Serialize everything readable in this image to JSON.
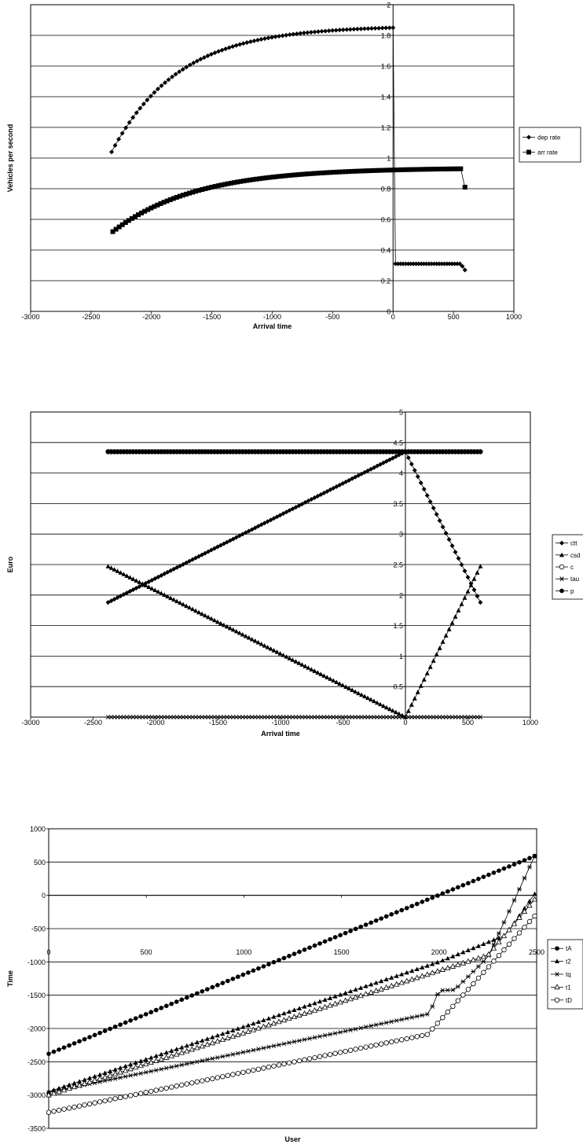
{
  "chart_data": [
    {
      "type": "scatter",
      "title": "",
      "xlabel": "Arrival time",
      "ylabel": "Vehicles per second",
      "xlim": [
        -3000,
        1000
      ],
      "ylim": [
        0,
        2
      ],
      "xticks": [
        -3000,
        -2500,
        -2000,
        -1500,
        -1000,
        -500,
        0,
        500,
        1000
      ],
      "yticks": [
        0,
        0.2,
        0.4,
        0.6,
        0.8,
        1,
        1.2,
        1.4,
        1.6,
        1.8,
        2
      ],
      "grid": "horizontal",
      "legend": "right",
      "series": [
        {
          "name": "dep rate",
          "marker": "diamond",
          "curve": "rise",
          "x_start": -2330,
          "x_end": 0,
          "n": 80,
          "y_start": 1.04,
          "y_end": 1.85,
          "tail": [
            [
              0,
              1.85
            ],
            [
              20,
              0.31
            ],
            [
              560,
              0.31
            ],
            [
              595,
              0.27
            ]
          ],
          "tail_n": 28
        },
        {
          "name": "arr rate",
          "marker": "square",
          "curve": "rise",
          "x_start": -2320,
          "x_end": 560,
          "n": 110,
          "y_start": 0.52,
          "y_end": 0.93,
          "tail": [
            [
              560,
              0.93
            ],
            [
              595,
              0.81
            ]
          ],
          "tail_n": 1
        }
      ]
    },
    {
      "type": "scatter",
      "title": "",
      "xlabel": "Arrival time",
      "ylabel": "Euro",
      "xlim": [
        -3000,
        1000
      ],
      "ylim": [
        0,
        5
      ],
      "xticks": [
        -3000,
        -2500,
        -2000,
        -1500,
        -1000,
        -500,
        0,
        500,
        1000
      ],
      "yticks": [
        0.5,
        1,
        1.5,
        2,
        2.5,
        3,
        3.5,
        4,
        4.5,
        5
      ],
      "grid": "horizontal",
      "legend": "right",
      "series": [
        {
          "name": "ctt",
          "marker": "diamond",
          "points": [
            [
              -2380,
              1.88
            ],
            [
              0,
              4.35
            ],
            [
              600,
              1.88
            ]
          ],
          "n": 120
        },
        {
          "name": "csd",
          "marker": "triangle",
          "points": [
            [
              -2380,
              2.47
            ],
            [
              0,
              0
            ],
            [
              600,
              2.47
            ]
          ],
          "n": 120
        },
        {
          "name": "c",
          "marker": "circle-open",
          "points": [
            [
              -2380,
              4.35
            ],
            [
              600,
              4.35
            ]
          ],
          "n": 120
        },
        {
          "name": "tau",
          "marker": "star",
          "points": [
            [
              -2380,
              0
            ],
            [
              600,
              0
            ]
          ],
          "n": 120
        },
        {
          "name": "p",
          "marker": "circle",
          "points": [
            [
              -2380,
              4.35
            ],
            [
              600,
              4.35
            ]
          ],
          "n": 120
        }
      ]
    },
    {
      "type": "scatter",
      "title": "",
      "xlabel": "User",
      "ylabel": "Time",
      "xlim": [
        0,
        2500
      ],
      "ylim": [
        -3500,
        1000
      ],
      "xticks": [
        0,
        500,
        1000,
        1500,
        2000,
        2500
      ],
      "xtick_labels": [
        "0",
        "500",
        "1000",
        "1500",
        "2000",
        "2500"
      ],
      "yticks": [
        -3500,
        -3000,
        -2500,
        -2000,
        -1500,
        -1000,
        -500,
        0,
        500,
        1000
      ],
      "grid": "horizontal",
      "legend": "right",
      "series": [
        {
          "name": "tA",
          "marker": "circle",
          "points": [
            [
              0,
              -2380
            ],
            [
              2490,
              590
            ]
          ],
          "n": 96
        },
        {
          "name": "t2",
          "marker": "triangle",
          "points": [
            [
              0,
              -2950
            ],
            [
              2000,
              -1000
            ],
            [
              2340,
              -600
            ],
            [
              2490,
              20
            ]
          ],
          "n": 96
        },
        {
          "name": "tq",
          "marker": "star",
          "points": [
            [
              0,
              -2960
            ],
            [
              1950,
              -1780
            ],
            [
              2000,
              -1430
            ],
            [
              2080,
              -1420
            ],
            [
              2250,
              -930
            ],
            [
              2490,
              590
            ]
          ],
          "n": 96
        },
        {
          "name": "t1",
          "marker": "triangle-open",
          "points": [
            [
              0,
              -3000
            ],
            [
              2250,
              -900
            ],
            [
              2490,
              -60
            ]
          ],
          "n": 96
        },
        {
          "name": "tD",
          "marker": "circle-open",
          "points": [
            [
              0,
              -3260
            ],
            [
              1940,
              -2090
            ],
            [
              2490,
              -310
            ]
          ],
          "n": 96
        }
      ]
    }
  ]
}
